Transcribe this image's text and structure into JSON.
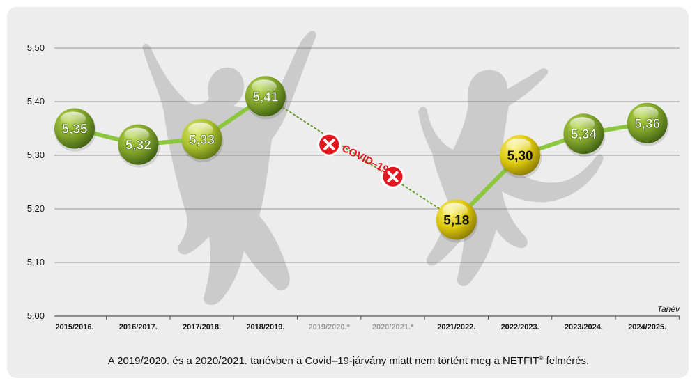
{
  "chart_data": {
    "type": "line",
    "x_axis_label": "Tanév",
    "categories": [
      "2015/2016.",
      "2016/2017.",
      "2017/2018.",
      "2018/2019.",
      "2019/2020.*",
      "2020/2021.*",
      "2021/2022.",
      "2022/2023.",
      "2023/2024.",
      "2024/2025."
    ],
    "series": [
      {
        "values": [
          5.35,
          5.32,
          5.33,
          5.41,
          null,
          null,
          5.18,
          5.3,
          5.34,
          5.36
        ],
        "labels": [
          "5,35",
          "5,32",
          "5,33",
          "5,41",
          "",
          "",
          "5,18",
          "5,30",
          "5,34",
          "5,36"
        ]
      }
    ],
    "missing_categories": [
      "2019/2020.*",
      "2020/2021.*"
    ],
    "missing_interpolated_values": [
      5.32,
      5.26
    ],
    "annotation": "COVID–19",
    "ylim": [
      5.0,
      5.5
    ],
    "yticks": [
      5.0,
      5.1,
      5.2,
      5.3,
      5.4,
      5.5
    ],
    "ytick_labels": [
      "5,00",
      "5,10",
      "5,20",
      "5,30",
      "5,40",
      "5,50"
    ],
    "grid": true,
    "colors": {
      "line": "#8dc63f",
      "gap_line": "#6a9a2a",
      "missing_marker": "#e3161e",
      "annotation": "#e3161e",
      "missing_tick_label": "#999999",
      "tick_label": "#111111",
      "grid": "#7a7a7a"
    }
  },
  "footnote": {
    "text_before": "A 2019/2020. és a 2020/2021. tanévben a Covid–19-járvány miatt nem történt meg a NETFIT",
    "registered_mark": "®",
    "text_after": " felmérés."
  }
}
